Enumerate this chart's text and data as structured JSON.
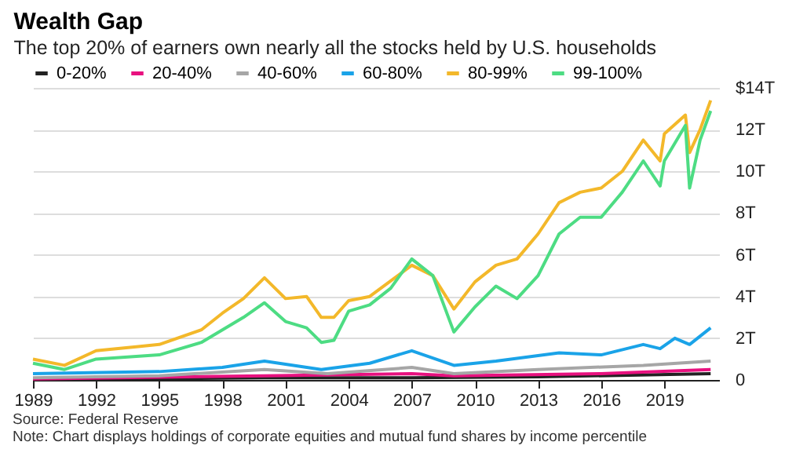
{
  "chart_data": {
    "type": "line",
    "title": "Wealth Gap",
    "subtitle": "The top 20% of earners own nearly all the stocks held by U.S. households",
    "annotations": [
      "Source: Federal Reserve",
      "Note: Chart displays holdings of corporate equities and mutual fund shares by income percentile"
    ],
    "series": [
      {
        "name": "0-20%",
        "color": "#222222",
        "x": [
          1989,
          2000,
          2007,
          2013,
          2021.2
        ],
        "values": [
          0.02,
          0.1,
          0.1,
          0.15,
          0.3
        ]
      },
      {
        "name": "20-40%",
        "color": "#e8117f",
        "x": [
          1989,
          2000,
          2007,
          2009,
          2016,
          2021.2
        ],
        "values": [
          0.05,
          0.2,
          0.3,
          0.2,
          0.3,
          0.5
        ]
      },
      {
        "name": "40-60%",
        "color": "#a6a6a6",
        "x": [
          1989,
          1995,
          2000,
          2003,
          2007,
          2009,
          2013,
          2018,
          2021.2
        ],
        "values": [
          0.1,
          0.2,
          0.5,
          0.3,
          0.6,
          0.3,
          0.5,
          0.7,
          0.9
        ]
      },
      {
        "name": "60-80%",
        "color": "#1aa3e8",
        "x": [
          1989,
          1995,
          1998,
          2000,
          2002.7,
          2005,
          2007,
          2009,
          2011,
          2014,
          2016,
          2018,
          2018.8,
          2019.5,
          2020.2,
          2021.2
        ],
        "values": [
          0.3,
          0.4,
          0.6,
          0.9,
          0.5,
          0.8,
          1.4,
          0.7,
          0.9,
          1.3,
          1.2,
          1.7,
          1.5,
          2.0,
          1.7,
          2.5
        ]
      },
      {
        "name": "80-99%",
        "color": "#f3b82a",
        "x": [
          1989,
          1990.5,
          1992,
          1994,
          1995,
          1997,
          1998,
          1999,
          2000,
          2001,
          2002,
          2002.7,
          2003.3,
          2004,
          2005,
          2007,
          2008,
          2009,
          2010,
          2011,
          2012,
          2013,
          2014,
          2015,
          2016,
          2017,
          2018,
          2018.8,
          2019,
          2020,
          2020.2,
          2020.7,
          2021.2
        ],
        "values": [
          1.0,
          0.7,
          1.4,
          1.6,
          1.7,
          2.4,
          3.2,
          3.9,
          4.9,
          3.9,
          4.0,
          3.0,
          3.0,
          3.8,
          4.0,
          5.5,
          5.0,
          3.4,
          4.7,
          5.5,
          5.8,
          7.0,
          8.5,
          9.0,
          9.2,
          10.0,
          11.5,
          10.5,
          11.8,
          12.7,
          10.9,
          12.0,
          13.4
        ]
      },
      {
        "name": "99-100%",
        "color": "#4ddc83",
        "x": [
          1989,
          1990.5,
          1992,
          1995,
          1997,
          1998,
          1999,
          2000,
          2001,
          2002,
          2002.7,
          2003.3,
          2004,
          2005,
          2006,
          2007,
          2008,
          2009,
          2010,
          2011,
          2012,
          2013,
          2014,
          2015,
          2016,
          2017,
          2018,
          2018.8,
          2019,
          2020,
          2020.2,
          2020.7,
          2021.2
        ],
        "values": [
          0.8,
          0.5,
          1.0,
          1.2,
          1.8,
          2.4,
          3.0,
          3.7,
          2.8,
          2.5,
          1.8,
          1.9,
          3.3,
          3.6,
          4.4,
          5.8,
          5.0,
          2.3,
          3.5,
          4.5,
          3.9,
          5.0,
          7.0,
          7.8,
          7.8,
          9.0,
          10.5,
          9.3,
          10.5,
          12.2,
          9.2,
          11.5,
          12.9
        ]
      }
    ],
    "xlim": [
      1989,
      2021.6
    ],
    "xticks": [
      1989,
      1992,
      1995,
      1998,
      2001,
      2004,
      2007,
      2010,
      2013,
      2016,
      2019
    ],
    "ylim": [
      0,
      14
    ],
    "yticks": [
      {
        "value": 0,
        "label": "0"
      },
      {
        "value": 2,
        "label": "2T"
      },
      {
        "value": 4,
        "label": "4T"
      },
      {
        "value": 6,
        "label": "6T"
      },
      {
        "value": 8,
        "label": "8T"
      },
      {
        "value": 10,
        "label": "10T"
      },
      {
        "value": 12,
        "label": "12T"
      },
      {
        "value": 14,
        "label": "$14T"
      }
    ],
    "grid": "y",
    "legend": "top",
    "line_style": "solid",
    "marker": "none"
  }
}
